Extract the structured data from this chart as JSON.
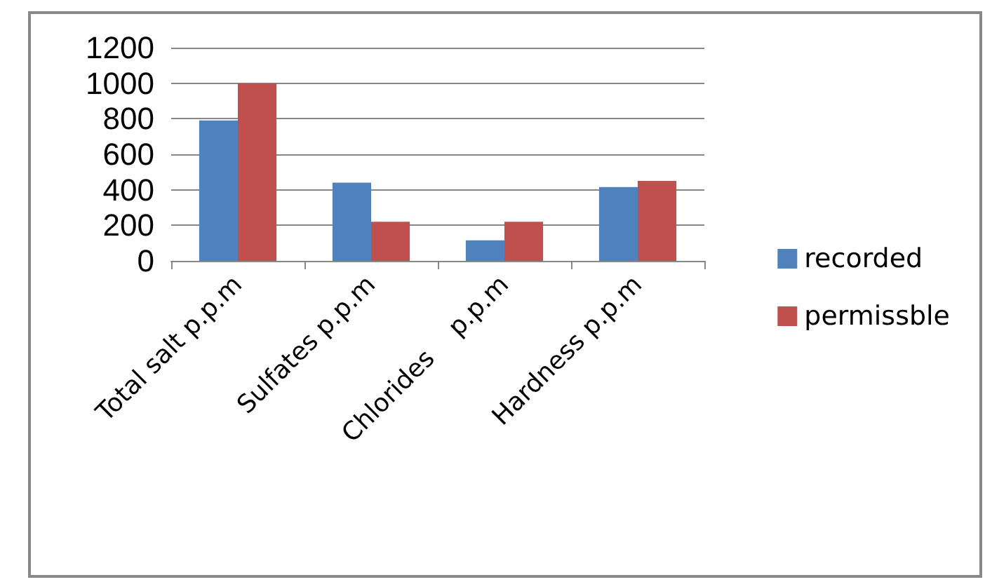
{
  "chart_data": {
    "type": "bar",
    "categories": [
      "Total salt p.p.m",
      "Sulfates p.p.m",
      "Chlorides    p.p.m",
      "Hardness p.p.m"
    ],
    "series": [
      {
        "name": "recorded",
        "color": "#4f81bd",
        "values": [
          790,
          440,
          115,
          415
        ]
      },
      {
        "name": "permissble",
        "color": "#c0504d",
        "values": [
          1000,
          220,
          220,
          450
        ]
      }
    ],
    "ylim": [
      0,
      1200
    ],
    "yticks": [
      0,
      200,
      400,
      600,
      800,
      1000,
      1200
    ],
    "grid": "y",
    "legend": "right"
  }
}
